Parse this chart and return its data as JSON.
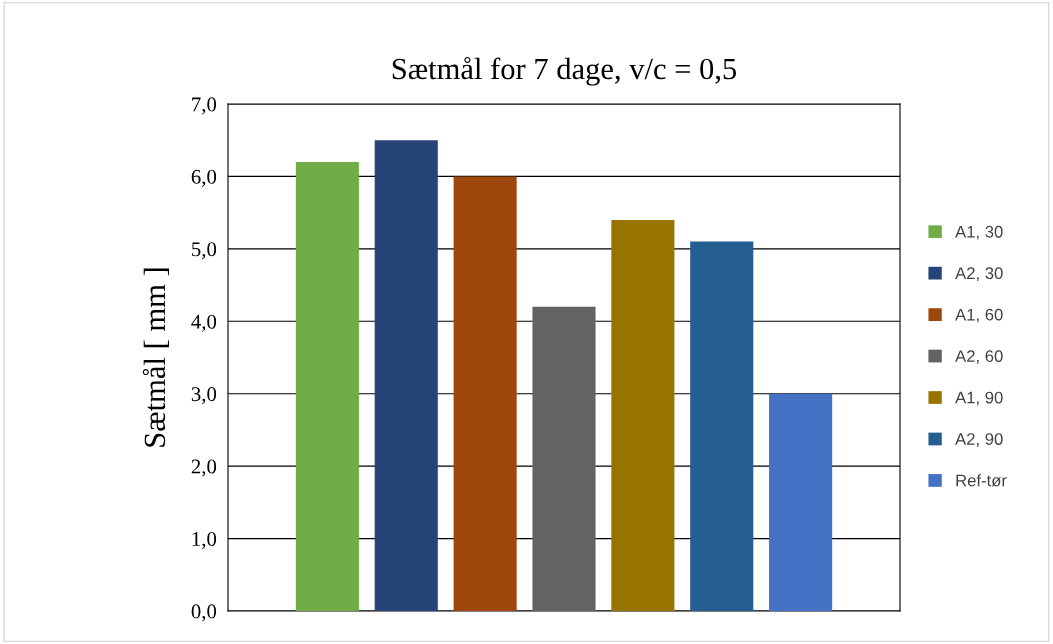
{
  "chart_data": {
    "type": "bar",
    "title": "Sætmål for 7 dage, v/c = 0,5",
    "ylabel": "Sætmål [ mm ]",
    "categories": [
      null
    ],
    "series": [
      {
        "name": "A1, 30",
        "color": "#70ad47",
        "values": [
          6.2
        ]
      },
      {
        "name": "A2, 30",
        "color": "#264478",
        "values": [
          6.5
        ]
      },
      {
        "name": "A1, 60",
        "color": "#9e480e",
        "values": [
          6.0
        ]
      },
      {
        "name": "A2, 60",
        "color": "#636363",
        "values": [
          4.2
        ]
      },
      {
        "name": "A1, 90",
        "color": "#997300",
        "values": [
          5.4
        ]
      },
      {
        "name": "A2, 90",
        "color": "#255e91",
        "values": [
          5.1
        ]
      },
      {
        "name": "Ref-tør",
        "color": "#4472c4",
        "values": [
          3.0
        ]
      }
    ],
    "ylim": [
      0,
      7
    ],
    "yticks": [
      {
        "value": 0,
        "label": "0,0"
      },
      {
        "value": 1,
        "label": "1,0"
      },
      {
        "value": 2,
        "label": "2,0"
      },
      {
        "value": 3,
        "label": "3,0"
      },
      {
        "value": 4,
        "label": "4,0"
      },
      {
        "value": 5,
        "label": "5,0"
      },
      {
        "value": 6,
        "label": "6,0"
      },
      {
        "value": 7,
        "label": "7,0"
      }
    ],
    "grid": "y",
    "legend": "right"
  }
}
